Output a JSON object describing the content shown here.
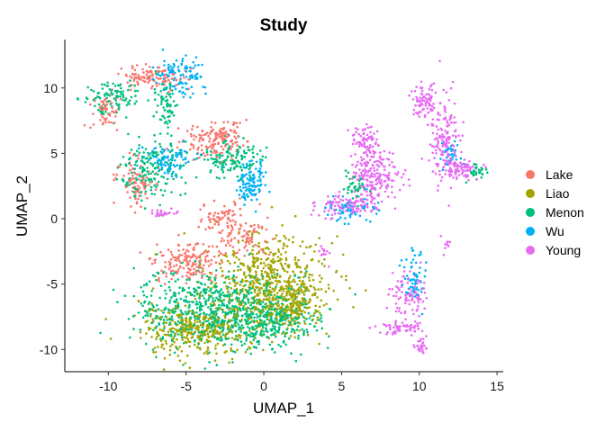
{
  "chart_data": {
    "type": "scatter",
    "title": "Study",
    "xlabel": "UMAP_1",
    "ylabel": "UMAP_2",
    "xlim": [
      -12.8,
      15.4
    ],
    "ylim": [
      -11.7,
      13.7
    ],
    "x_ticks": [
      -10,
      -5,
      0,
      5,
      10,
      15
    ],
    "y_ticks": [
      -10,
      -5,
      0,
      5,
      10
    ],
    "grid": false,
    "legend_position": "right",
    "series": [
      {
        "name": "Lake",
        "color": "#F8766D"
      },
      {
        "name": "Liao",
        "color": "#A3A500"
      },
      {
        "name": "Menon",
        "color": "#00BF7D"
      },
      {
        "name": "Wu",
        "color": "#00B0F6"
      },
      {
        "name": "Young",
        "color": "#E76BF3"
      }
    ],
    "clusters": [
      {
        "series": "Liao",
        "cx": 0.0,
        "cy": -4.8,
        "sx": 2.0,
        "sy": 1.8,
        "n": 550
      },
      {
        "series": "Liao",
        "cx": -4.5,
        "cy": -8.5,
        "sx": 1.7,
        "sy": 0.9,
        "n": 350
      },
      {
        "series": "Liao",
        "cx": 1.8,
        "cy": -6.5,
        "sx": 1.0,
        "sy": 1.0,
        "n": 200
      },
      {
        "series": "Menon",
        "cx": -3.3,
        "cy": -7.0,
        "sx": 2.4,
        "sy": 1.5,
        "n": 650
      },
      {
        "series": "Menon",
        "cx": 0.3,
        "cy": -7.8,
        "sx": 1.6,
        "sy": 1.0,
        "n": 300
      },
      {
        "series": "Lake",
        "cx": -5.0,
        "cy": -3.3,
        "sx": 1.0,
        "sy": 0.8,
        "n": 160
      },
      {
        "series": "Lake",
        "cx": -1.5,
        "cy": -1.3,
        "sx": 1.0,
        "sy": 0.9,
        "n": 110
      },
      {
        "series": "Menon",
        "cx": -7.3,
        "cy": 3.8,
        "sx": 1.0,
        "sy": 1.1,
        "n": 170
      },
      {
        "series": "Lake",
        "cx": -8.2,
        "cy": 2.8,
        "sx": 0.6,
        "sy": 0.8,
        "n": 90
      },
      {
        "series": "Wu",
        "cx": -6.0,
        "cy": 4.5,
        "sx": 0.8,
        "sy": 0.6,
        "n": 90
      },
      {
        "series": "Lake",
        "cx": -3.2,
        "cy": 6.0,
        "sx": 1.1,
        "sy": 0.7,
        "n": 160
      },
      {
        "series": "Menon",
        "cx": -2.0,
        "cy": 4.6,
        "sx": 1.0,
        "sy": 0.7,
        "n": 130
      },
      {
        "series": "Wu",
        "cx": -0.8,
        "cy": 2.8,
        "sx": 0.4,
        "sy": 0.9,
        "n": 110
      },
      {
        "series": "Lake",
        "cx": -7.2,
        "cy": 10.8,
        "sx": 1.0,
        "sy": 0.5,
        "n": 110
      },
      {
        "series": "Wu",
        "cx": -5.5,
        "cy": 10.8,
        "sx": 0.8,
        "sy": 0.7,
        "n": 110
      },
      {
        "series": "Menon",
        "cx": -9.8,
        "cy": 9.3,
        "sx": 0.9,
        "sy": 0.6,
        "n": 100
      },
      {
        "series": "Lake",
        "cx": -10.2,
        "cy": 8.2,
        "sx": 0.4,
        "sy": 0.7,
        "n": 60
      },
      {
        "series": "Menon",
        "cx": -6.3,
        "cy": 8.8,
        "sx": 0.4,
        "sy": 0.9,
        "n": 70
      },
      {
        "series": "Lake",
        "cx": -2.8,
        "cy": 0.3,
        "sx": 0.8,
        "sy": 0.6,
        "n": 50
      },
      {
        "series": "Young",
        "cx": -6.5,
        "cy": 0.4,
        "sx": 0.4,
        "sy": 0.15,
        "n": 25
      },
      {
        "series": "Young",
        "cx": 7.0,
        "cy": 3.2,
        "sx": 0.8,
        "sy": 1.0,
        "n": 200
      },
      {
        "series": "Young",
        "cx": 6.6,
        "cy": 6.0,
        "sx": 0.4,
        "sy": 0.6,
        "n": 70
      },
      {
        "series": "Young",
        "cx": 5.2,
        "cy": 1.0,
        "sx": 1.0,
        "sy": 0.4,
        "n": 100
      },
      {
        "series": "Wu",
        "cx": 5.5,
        "cy": 0.6,
        "sx": 0.8,
        "sy": 0.5,
        "n": 60
      },
      {
        "series": "Menon",
        "cx": 6.0,
        "cy": 2.5,
        "sx": 0.5,
        "sy": 0.5,
        "n": 40
      },
      {
        "series": "Young",
        "cx": 10.3,
        "cy": 9.0,
        "sx": 0.4,
        "sy": 0.6,
        "n": 80
      },
      {
        "series": "Young",
        "cx": 11.6,
        "cy": 6.0,
        "sx": 0.5,
        "sy": 1.6,
        "n": 160
      },
      {
        "series": "Young",
        "cx": 12.8,
        "cy": 3.8,
        "sx": 0.7,
        "sy": 0.4,
        "n": 80
      },
      {
        "series": "Menon",
        "cx": 13.7,
        "cy": 3.6,
        "sx": 0.3,
        "sy": 0.3,
        "n": 30
      },
      {
        "series": "Wu",
        "cx": 12.0,
        "cy": 5.0,
        "sx": 0.3,
        "sy": 0.6,
        "n": 30
      },
      {
        "series": "Young",
        "cx": 9.3,
        "cy": -5.8,
        "sx": 0.6,
        "sy": 0.9,
        "n": 90
      },
      {
        "series": "Wu",
        "cx": 9.6,
        "cy": -4.5,
        "sx": 0.4,
        "sy": 1.0,
        "n": 60
      },
      {
        "series": "Young",
        "cx": 8.8,
        "cy": -8.4,
        "sx": 0.7,
        "sy": 0.3,
        "n": 60
      },
      {
        "series": "Young",
        "cx": 10.1,
        "cy": -9.8,
        "sx": 0.2,
        "sy": 0.3,
        "n": 25
      },
      {
        "series": "Young",
        "cx": 3.8,
        "cy": -2.6,
        "sx": 0.15,
        "sy": 0.35,
        "n": 12
      },
      {
        "series": "Young",
        "cx": 11.8,
        "cy": -2.2,
        "sx": 0.15,
        "sy": 0.35,
        "n": 10
      }
    ]
  }
}
